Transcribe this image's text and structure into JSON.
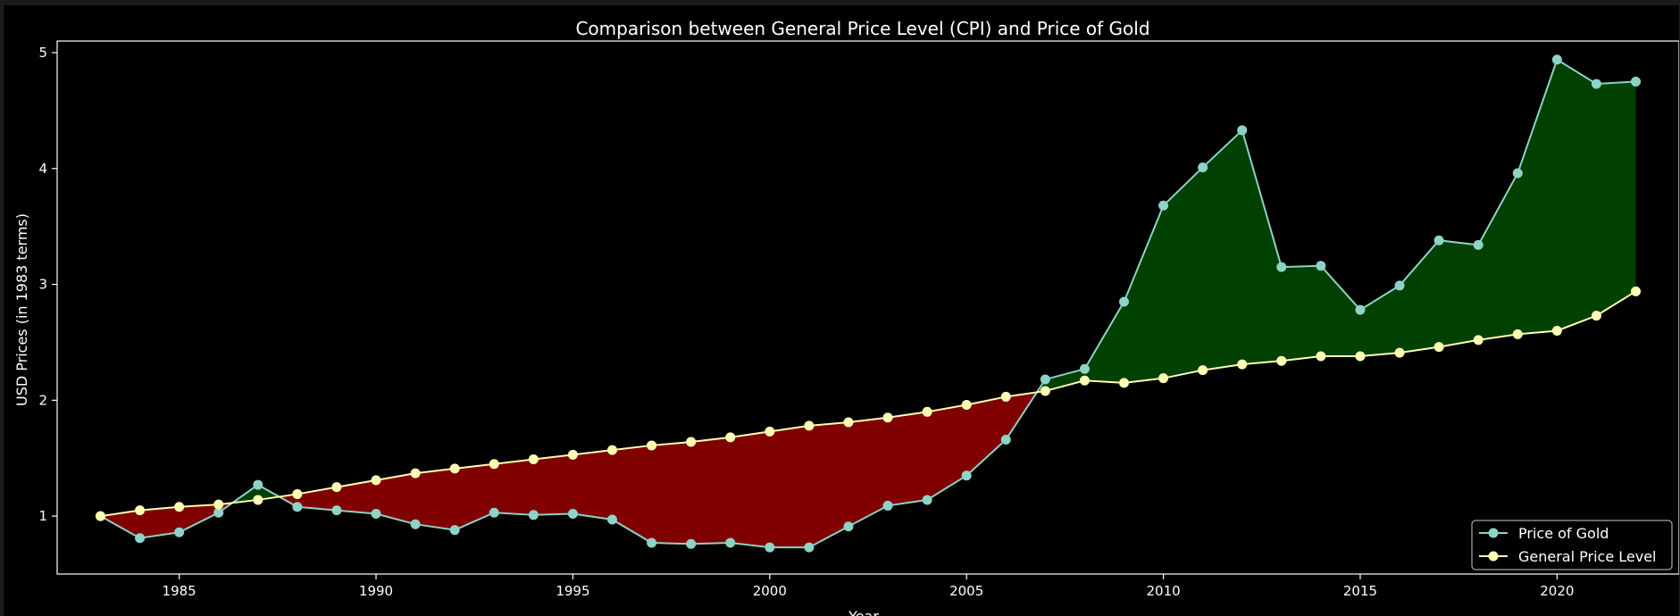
{
  "chart_data": {
    "type": "line",
    "title": "Comparison between General Price Level (CPI) and Price of Gold",
    "xlabel": "Year",
    "ylabel": "USD Prices (in 1983 terms)",
    "xlim": [
      1981.9,
      2023.1
    ],
    "ylim": [
      0.5,
      5.1
    ],
    "x_ticks": [
      1985,
      1990,
      1995,
      2000,
      2005,
      2010,
      2015,
      2020
    ],
    "y_ticks": [
      1,
      2,
      3,
      4,
      5
    ],
    "grid": false,
    "legend_position": "bottom-right",
    "fill_between": {
      "gold_above_color": "#004000",
      "gold_below_color": "#800000"
    },
    "x": [
      1983,
      1984,
      1985,
      1986,
      1987,
      1988,
      1989,
      1990,
      1991,
      1992,
      1993,
      1994,
      1995,
      1996,
      1997,
      1998,
      1999,
      2000,
      2001,
      2002,
      2003,
      2004,
      2005,
      2006,
      2007,
      2008,
      2009,
      2010,
      2011,
      2012,
      2013,
      2014,
      2015,
      2016,
      2017,
      2018,
      2019,
      2020,
      2021,
      2022
    ],
    "series": [
      {
        "name": "Price of Gold",
        "color": "#8dd3c7",
        "values": [
          1.0,
          0.81,
          0.86,
          1.03,
          1.27,
          1.08,
          1.05,
          1.02,
          0.93,
          0.88,
          1.03,
          1.01,
          1.02,
          0.97,
          0.77,
          0.76,
          0.77,
          0.73,
          0.73,
          0.91,
          1.09,
          1.14,
          1.35,
          1.66,
          2.18,
          2.27,
          2.85,
          3.68,
          4.01,
          4.33,
          3.15,
          3.16,
          2.78,
          2.99,
          3.38,
          3.34,
          3.96,
          4.94,
          4.73,
          4.75
        ]
      },
      {
        "name": "General Price Level",
        "color": "#ffffb3",
        "values": [
          1.0,
          1.05,
          1.08,
          1.1,
          1.14,
          1.19,
          1.25,
          1.31,
          1.37,
          1.41,
          1.45,
          1.49,
          1.53,
          1.57,
          1.61,
          1.64,
          1.68,
          1.73,
          1.78,
          1.81,
          1.85,
          1.9,
          1.96,
          2.03,
          2.08,
          2.17,
          2.15,
          2.19,
          2.26,
          2.31,
          2.34,
          2.38,
          2.38,
          2.41,
          2.46,
          2.52,
          2.57,
          2.6,
          2.73,
          2.94
        ]
      }
    ]
  }
}
